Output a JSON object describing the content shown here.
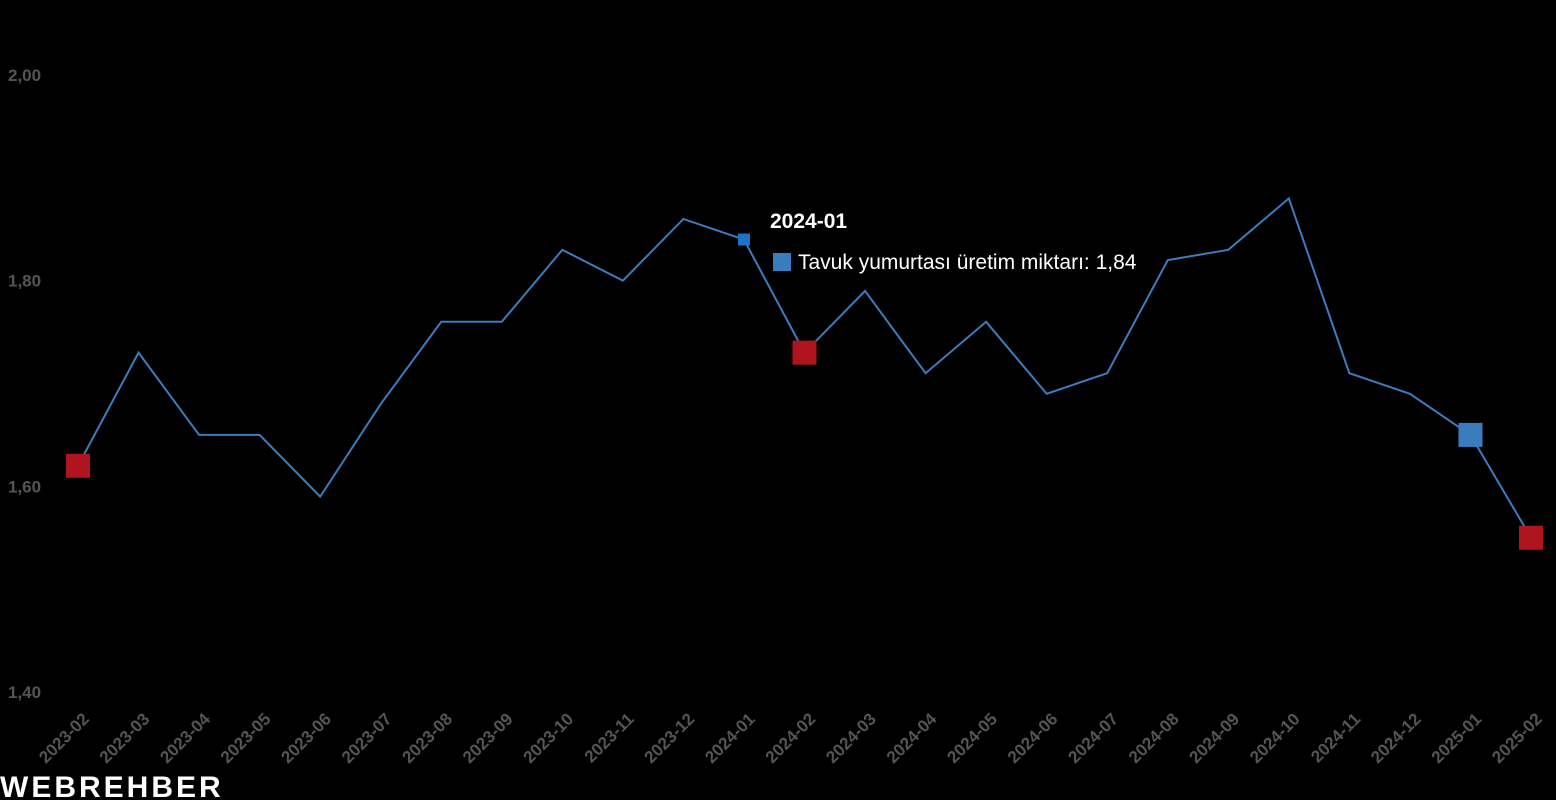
{
  "chart_data": {
    "type": "line",
    "categories": [
      "2023-02",
      "2023-03",
      "2023-04",
      "2023-05",
      "2023-06",
      "2023-07",
      "2023-08",
      "2023-09",
      "2023-10",
      "2023-11",
      "2023-12",
      "2024-01",
      "2024-02",
      "2024-03",
      "2024-04",
      "2024-05",
      "2024-06",
      "2024-07",
      "2024-08",
      "2024-09",
      "2024-10",
      "2024-11",
      "2024-12",
      "2025-01",
      "2025-02"
    ],
    "series": [
      {
        "name": "Tavuk yumurtası üretim miktarı",
        "color": "#3a7dbf",
        "values": [
          1.62,
          1.73,
          1.65,
          1.65,
          1.59,
          1.68,
          1.76,
          1.76,
          1.83,
          1.8,
          1.86,
          1.84,
          1.73,
          1.79,
          1.71,
          1.76,
          1.69,
          1.71,
          1.82,
          1.83,
          1.88,
          1.71,
          1.69,
          1.65,
          1.55
        ],
        "marker_colors": [
          "#b0151f",
          null,
          null,
          null,
          null,
          null,
          null,
          null,
          null,
          null,
          null,
          "#1f73c4",
          "#b0151f",
          null,
          null,
          null,
          null,
          null,
          null,
          null,
          null,
          null,
          null,
          "#3a7dbf",
          "#b0151f"
        ]
      }
    ],
    "ylim": [
      1.4,
      2.0
    ],
    "yticks": [
      {
        "value": 1.4,
        "label": "1,40"
      },
      {
        "value": 1.6,
        "label": "1,60"
      },
      {
        "value": 1.8,
        "label": "1,80"
      },
      {
        "value": 2.0,
        "label": "2,00"
      }
    ],
    "tooltip": "Tavuk yumurtası üretim miktarı: 1,84",
    "logo": "WEBREHBER"
  }
}
